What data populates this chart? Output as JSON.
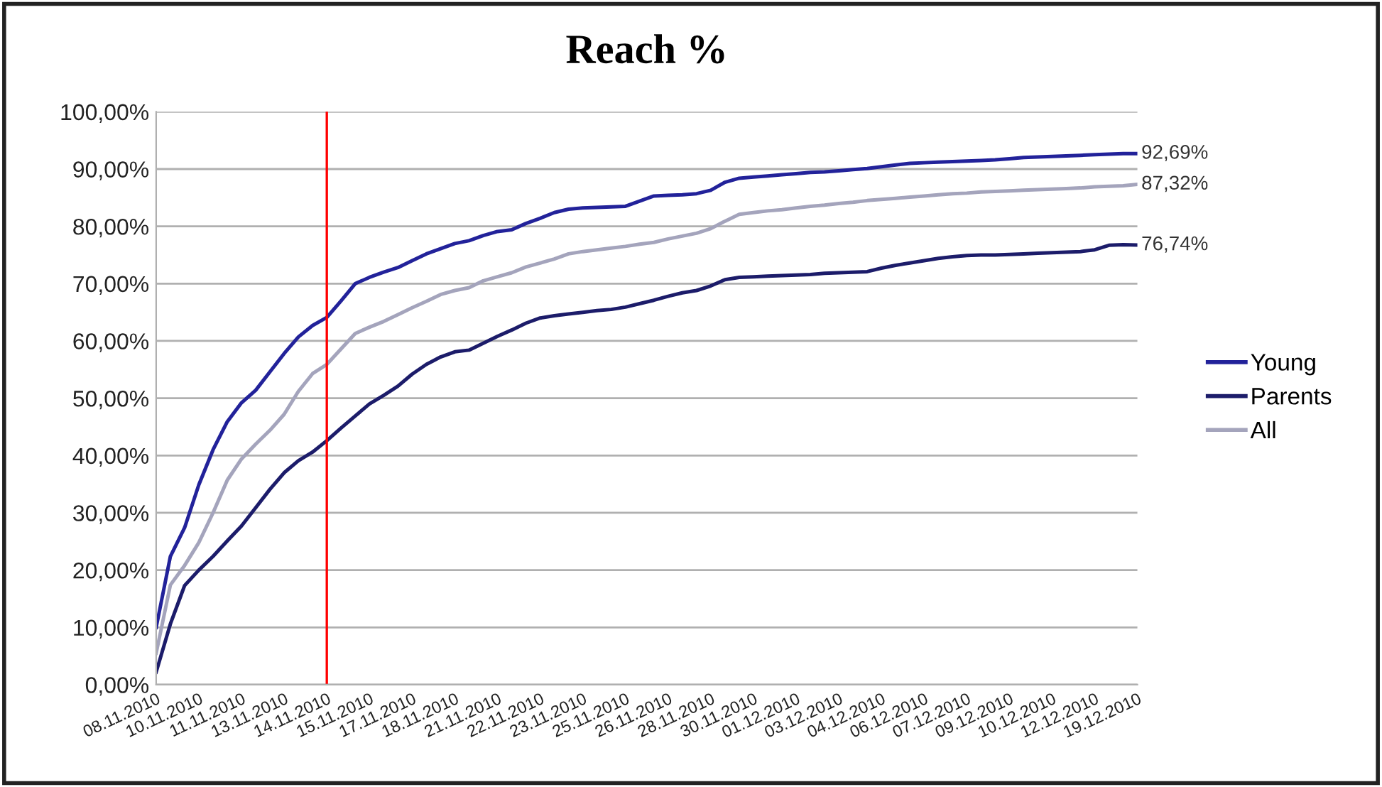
{
  "chart_data": {
    "type": "line",
    "title": "Reach %",
    "categories": [
      "08.11.2010",
      null,
      null,
      "10.11.2010",
      null,
      null,
      "11.11.2010",
      null,
      null,
      "13.11.2010",
      null,
      null,
      "14.11.2010",
      null,
      null,
      "15.11.2010",
      null,
      null,
      "17.11.2010",
      null,
      null,
      "18.11.2010",
      null,
      null,
      "21.11.2010",
      null,
      null,
      "22.11.2010",
      null,
      null,
      "23.11.2010",
      null,
      null,
      "25.11.2010",
      null,
      null,
      "26.11.2010",
      null,
      null,
      "28.11.2010",
      null,
      null,
      "30.11.2010",
      null,
      null,
      "01.12.2010",
      null,
      null,
      "03.12.2010",
      null,
      null,
      "04.12.2010",
      null,
      null,
      "06.12.2010",
      null,
      null,
      "07.12.2010",
      null,
      null,
      "09.12.2010",
      null,
      null,
      "10.12.2010",
      null,
      null,
      "12.12.2010",
      null,
      null,
      "19.12.2010"
    ],
    "series": [
      {
        "name": "Young",
        "color": "#22229a",
        "values": [
          10,
          22.4,
          27.4,
          34.9,
          41,
          45.9,
          49.2,
          51.4,
          54.6,
          57.8,
          60.7,
          62.7,
          64.1,
          67,
          70,
          71.1,
          72,
          72.8,
          74,
          75.2,
          76.1,
          77,
          77.5,
          78.4,
          79.1,
          79.4,
          80.5,
          81.4,
          82.4,
          83,
          83.2,
          83.3,
          83.4,
          83.5,
          84.4,
          85.3,
          85.4,
          85.5,
          85.7,
          86.3,
          87.7,
          88.4,
          88.6,
          88.8,
          89.0,
          89.2,
          89.4,
          89.5,
          89.7,
          89.9,
          90.1,
          90.4,
          90.7,
          91.0,
          91.1,
          91.2,
          91.3,
          91.4,
          91.5,
          91.6,
          91.8,
          92.0,
          92.1,
          92.2,
          92.3,
          92.4,
          92.5,
          92.6,
          92.7,
          92.69
        ]
      },
      {
        "name": "Parents",
        "color": "#1c1c6a",
        "values": [
          2.2,
          10.6,
          17.3,
          20,
          22.4,
          25.1,
          27.7,
          30.9,
          34.1,
          37,
          39.1,
          40.6,
          42.6,
          44.8,
          46.9,
          49,
          50.5,
          52.1,
          54.2,
          55.9,
          57.2,
          58.1,
          58.4,
          59.6,
          60.8,
          61.9,
          63.1,
          64,
          64.4,
          64.7,
          65,
          65.3,
          65.5,
          65.9,
          66.5,
          67.1,
          67.8,
          68.4,
          68.8,
          69.6,
          70.7,
          71.1,
          71.2,
          71.3,
          71.4,
          71.5,
          71.6,
          71.8,
          71.9,
          72.0,
          72.1,
          72.7,
          73.2,
          73.6,
          74,
          74.4,
          74.7,
          74.9,
          75.0,
          75.0,
          75.1,
          75.2,
          75.3,
          75.4,
          75.5,
          75.6,
          75.9,
          76.7,
          76.8,
          76.74
        ]
      },
      {
        "name": "All",
        "color": "#a4a4bc",
        "values": [
          5.5,
          17.4,
          20.8,
          24.8,
          30,
          35.7,
          39.4,
          42,
          44.4,
          47.2,
          51.2,
          54.3,
          55.9,
          58.6,
          61.3,
          62.4,
          63.4,
          64.6,
          65.8,
          66.9,
          68.1,
          68.8,
          69.3,
          70.5,
          71.2,
          71.9,
          72.9,
          73.6,
          74.3,
          75.2,
          75.6,
          75.9,
          76.2,
          76.5,
          76.9,
          77.2,
          77.8,
          78.3,
          78.8,
          79.6,
          80.9,
          82.1,
          82.4,
          82.7,
          82.9,
          83.2,
          83.5,
          83.7,
          84.0,
          84.2,
          84.5,
          84.7,
          84.9,
          85.1,
          85.3,
          85.5,
          85.7,
          85.8,
          86.0,
          86.1,
          86.2,
          86.3,
          86.4,
          86.5,
          86.6,
          86.7,
          86.9,
          87.0,
          87.1,
          87.32
        ]
      }
    ],
    "ylim": [
      0,
      100
    ],
    "yticks": [
      {
        "value": 0,
        "label": "0,00%"
      },
      {
        "value": 10,
        "label": "10,00%"
      },
      {
        "value": 20,
        "label": "20,00%"
      },
      {
        "value": 30,
        "label": "30,00%"
      },
      {
        "value": 40,
        "label": "40,00%"
      },
      {
        "value": 50,
        "label": "50,00%"
      },
      {
        "value": 60,
        "label": "60,00%"
      },
      {
        "value": 70,
        "label": "70,00%"
      },
      {
        "value": 80,
        "label": "80,00%"
      },
      {
        "value": 90,
        "label": "90,00%"
      },
      {
        "value": 100,
        "label": "100,00%"
      }
    ],
    "annotations": [
      {
        "text": "92,69%",
        "x": "19.12.2010",
        "y": 92.69
      },
      {
        "text": "87,32%",
        "x": "19.12.2010",
        "y": 87.32
      },
      {
        "text": "76,74%",
        "x": "19.12.2010",
        "y": 76.74
      }
    ],
    "ref_lines": [
      {
        "axis": "x",
        "value": "14.11.2010",
        "color": "#ff0000"
      }
    ],
    "grid": "y",
    "legend": "right",
    "marker": "none",
    "line_style": "solid"
  }
}
